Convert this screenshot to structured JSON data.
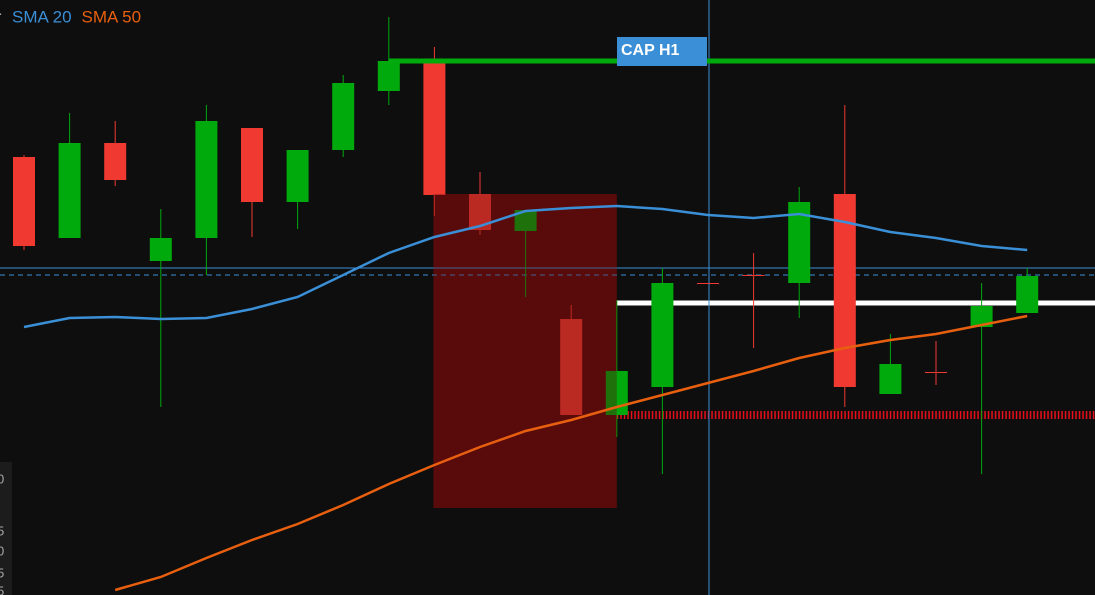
{
  "chart_data": {
    "type": "candlestick",
    "legend": [
      "SMA 20",
      "SMA 50"
    ],
    "ylim": [
      0,
      59.5
    ],
    "background": "#0e0e0e",
    "up_color": "#00a90c",
    "down_color": "#f03a31",
    "open": [
      43.8,
      35.7,
      45.2,
      33.4,
      35.7,
      46.7,
      39.3,
      44.5,
      50.4,
      53.2,
      40.1,
      36.4,
      27.6,
      18,
      20.8,
      31.2,
      32,
      31.2,
      40.1,
      20.1,
      22.3,
      26.8,
      28.2
    ],
    "high": [
      44,
      48.2,
      47.4,
      38.6,
      49,
      46.7,
      44.5,
      52,
      57.8,
      54.8,
      42.3,
      38.5,
      29,
      29.5,
      32.7,
      31.2,
      34.2,
      40.8,
      49,
      26.1,
      25.4,
      31.2,
      32.7
    ],
    "low": [
      34.5,
      35.7,
      40.9,
      18.8,
      32,
      35.8,
      36.6,
      43.8,
      49,
      37.9,
      36,
      29.8,
      18,
      15.8,
      12.1,
      31.1,
      24.7,
      27.7,
      18.8,
      20.1,
      21,
      12.1,
      28.2
    ],
    "close": [
      34.9,
      45.2,
      41.5,
      35.7,
      47.4,
      39.3,
      44.5,
      51.2,
      53.4,
      40,
      36.5,
      38.5,
      18,
      22.4,
      31.2,
      31.1,
      31.9,
      39.3,
      20.8,
      23.1,
      22.2,
      28.9,
      31.9
    ],
    "series": [
      {
        "name": "SMA 20",
        "color": "#3a8fd6",
        "values": [
          26.8,
          27.7,
          27.8,
          27.6,
          27.7,
          28.6,
          29.8,
          32,
          34.2,
          35.8,
          36.9,
          38.4,
          38.7,
          38.9,
          38.6,
          38,
          37.7,
          38.1,
          37.3,
          36.3,
          35.7,
          34.9,
          34.5
        ]
      },
      {
        "name": "SMA 50",
        "color": "#e8600f",
        "values": [
          null,
          null,
          0.5,
          1.8,
          3.7,
          5.5,
          7.1,
          9,
          11.1,
          13,
          14.8,
          16.4,
          17.5,
          18.8,
          20,
          21.2,
          22.4,
          23.7,
          24.7,
          25.5,
          26.1,
          27,
          27.9
        ]
      }
    ],
    "annotation": {
      "text": "CAP H1",
      "value": 53.4,
      "color": "#00a90c"
    },
    "levels": [
      {
        "value": 32.7,
        "color": "#3a8fd6",
        "style": "solid"
      },
      {
        "value": 32,
        "color": "#3a8fd6",
        "style": "dashed"
      },
      {
        "value": 29.2,
        "color": "#ffffff",
        "style": "thick"
      },
      {
        "value": 18,
        "color": "#e8101a",
        "style": "dotted"
      }
    ],
    "zone": {
      "from": 9,
      "to": 13,
      "high": 40.1,
      "low": 8.7,
      "color": "#5a0c0c"
    },
    "cursor_index": 15,
    "lower_pane_labels": [
      "0",
      "5",
      "0",
      "5",
      "5"
    ]
  }
}
